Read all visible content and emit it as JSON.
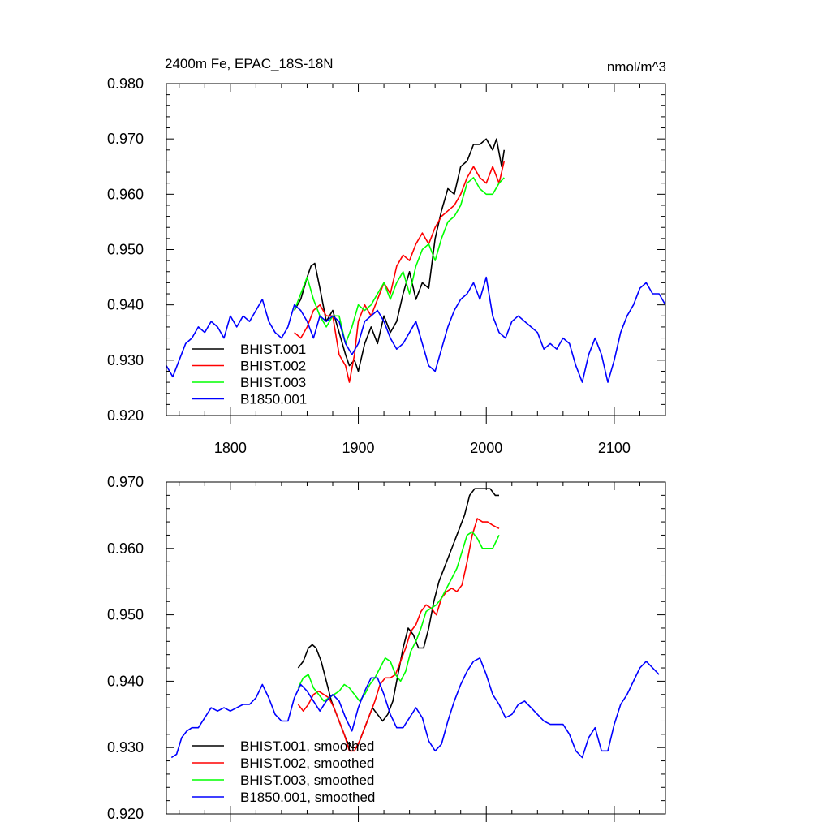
{
  "chart_data": [
    {
      "type": "line",
      "title": "2400m Fe, EPAC_18S-18N",
      "units": "nmol/m^3",
      "xlim": [
        1750,
        2140
      ],
      "ylim": [
        0.92,
        0.98
      ],
      "xticks": [
        1800,
        1900,
        2000,
        2100
      ],
      "xtick_labels": [
        "1800",
        "1900",
        "2000",
        "2100"
      ],
      "yticks": [
        0.92,
        0.93,
        0.94,
        0.95,
        0.96,
        0.97,
        0.98
      ],
      "ytick_labels": [
        "0.920",
        "0.930",
        "0.940",
        "0.950",
        "0.960",
        "0.970",
        "0.980"
      ],
      "grid": false,
      "legend_position": "bottom-left",
      "series": [
        {
          "name": "BHIST.001",
          "color": "#000000",
          "x": [
            1850,
            1855,
            1860,
            1863,
            1866,
            1870,
            1875,
            1880,
            1885,
            1890,
            1893,
            1897,
            1900,
            1905,
            1910,
            1915,
            1920,
            1925,
            1930,
            1935,
            1940,
            1945,
            1950,
            1955,
            1960,
            1965,
            1970,
            1975,
            1980,
            1985,
            1990,
            1995,
            2000,
            2005,
            2008,
            2012,
            2014
          ],
          "y": [
            0.939,
            0.941,
            0.945,
            0.947,
            0.9475,
            0.943,
            0.937,
            0.939,
            0.935,
            0.931,
            0.929,
            0.93,
            0.928,
            0.933,
            0.936,
            0.933,
            0.938,
            0.935,
            0.937,
            0.942,
            0.946,
            0.941,
            0.944,
            0.943,
            0.952,
            0.957,
            0.961,
            0.96,
            0.965,
            0.966,
            0.969,
            0.969,
            0.97,
            0.968,
            0.97,
            0.965,
            0.968
          ]
        },
        {
          "name": "BHIST.002",
          "color": "#ff0000",
          "x": [
            1850,
            1855,
            1860,
            1865,
            1870,
            1875,
            1880,
            1885,
            1890,
            1893,
            1897,
            1900,
            1905,
            1910,
            1915,
            1920,
            1925,
            1930,
            1935,
            1940,
            1945,
            1950,
            1955,
            1960,
            1965,
            1970,
            1975,
            1980,
            1985,
            1990,
            1995,
            2000,
            2005,
            2010,
            2014
          ],
          "y": [
            0.935,
            0.934,
            0.936,
            0.939,
            0.94,
            0.938,
            0.938,
            0.931,
            0.929,
            0.926,
            0.931,
            0.937,
            0.94,
            0.938,
            0.941,
            0.944,
            0.942,
            0.947,
            0.949,
            0.948,
            0.951,
            0.953,
            0.951,
            0.954,
            0.956,
            0.957,
            0.958,
            0.96,
            0.963,
            0.965,
            0.963,
            0.962,
            0.965,
            0.962,
            0.966
          ]
        },
        {
          "name": "BHIST.003",
          "color": "#00ff00",
          "x": [
            1850,
            1855,
            1860,
            1865,
            1870,
            1875,
            1880,
            1885,
            1890,
            1895,
            1900,
            1905,
            1910,
            1915,
            1920,
            1925,
            1930,
            1935,
            1940,
            1945,
            1950,
            1955,
            1960,
            1965,
            1970,
            1975,
            1980,
            1985,
            1990,
            1995,
            2000,
            2005,
            2010,
            2014
          ],
          "y": [
            0.939,
            0.942,
            0.945,
            0.941,
            0.938,
            0.936,
            0.938,
            0.938,
            0.933,
            0.936,
            0.94,
            0.939,
            0.94,
            0.942,
            0.944,
            0.941,
            0.944,
            0.946,
            0.942,
            0.947,
            0.95,
            0.951,
            0.948,
            0.952,
            0.955,
            0.956,
            0.958,
            0.962,
            0.963,
            0.961,
            0.96,
            0.96,
            0.962,
            0.963
          ]
        },
        {
          "name": "B1850.001",
          "color": "#0000ff",
          "x": [
            1750,
            1755,
            1760,
            1765,
            1770,
            1775,
            1780,
            1785,
            1790,
            1795,
            1800,
            1805,
            1810,
            1815,
            1820,
            1825,
            1830,
            1835,
            1840,
            1845,
            1850,
            1855,
            1860,
            1865,
            1870,
            1875,
            1880,
            1885,
            1890,
            1895,
            1900,
            1905,
            1910,
            1915,
            1920,
            1925,
            1930,
            1935,
            1940,
            1945,
            1950,
            1955,
            1960,
            1965,
            1970,
            1975,
            1980,
            1985,
            1990,
            1995,
            2000,
            2005,
            2010,
            2015,
            2020,
            2025,
            2030,
            2035,
            2040,
            2045,
            2050,
            2055,
            2060,
            2065,
            2070,
            2075,
            2080,
            2085,
            2090,
            2095,
            2100,
            2105,
            2110,
            2115,
            2120,
            2125,
            2130,
            2135,
            2140
          ],
          "y": [
            0.929,
            0.927,
            0.93,
            0.933,
            0.934,
            0.936,
            0.935,
            0.937,
            0.936,
            0.934,
            0.938,
            0.936,
            0.938,
            0.937,
            0.939,
            0.941,
            0.937,
            0.935,
            0.934,
            0.936,
            0.94,
            0.939,
            0.937,
            0.934,
            0.938,
            0.937,
            0.938,
            0.937,
            0.933,
            0.931,
            0.933,
            0.937,
            0.938,
            0.939,
            0.937,
            0.934,
            0.932,
            0.933,
            0.935,
            0.937,
            0.933,
            0.929,
            0.928,
            0.932,
            0.936,
            0.939,
            0.941,
            0.942,
            0.944,
            0.941,
            0.945,
            0.938,
            0.935,
            0.934,
            0.937,
            0.938,
            0.937,
            0.936,
            0.935,
            0.932,
            0.933,
            0.932,
            0.934,
            0.933,
            0.929,
            0.926,
            0.931,
            0.934,
            0.931,
            0.926,
            0.93,
            0.935,
            0.938,
            0.94,
            0.943,
            0.944,
            0.942,
            0.942,
            0.94
          ]
        }
      ]
    },
    {
      "type": "line",
      "xlim": [
        1750,
        2140
      ],
      "ylim": [
        0.92,
        0.97
      ],
      "xticks": [
        1800,
        1900,
        2000,
        2100
      ],
      "xtick_labels": [],
      "yticks": [
        0.92,
        0.93,
        0.94,
        0.95,
        0.96,
        0.97
      ],
      "ytick_labels": [
        "0.920",
        "0.930",
        "0.940",
        "0.950",
        "0.960",
        "0.970"
      ],
      "grid": false,
      "legend_position": "bottom-left",
      "series": [
        {
          "name": "BHIST.001, smoothed",
          "color": "#000000",
          "x": [
            1853,
            1857,
            1861,
            1864,
            1867,
            1871,
            1875,
            1879,
            1883,
            1887,
            1891,
            1895,
            1899,
            1903,
            1907,
            1911,
            1915,
            1919,
            1923,
            1927,
            1931,
            1935,
            1939,
            1943,
            1947,
            1951,
            1955,
            1959,
            1963,
            1967,
            1971,
            1975,
            1979,
            1983,
            1987,
            1991,
            1995,
            1999,
            2003,
            2007,
            2010
          ],
          "y": [
            0.942,
            0.943,
            0.945,
            0.9455,
            0.945,
            0.943,
            0.94,
            0.937,
            0.935,
            0.933,
            0.931,
            0.93,
            0.93,
            0.932,
            0.934,
            0.936,
            0.935,
            0.934,
            0.935,
            0.937,
            0.941,
            0.945,
            0.948,
            0.947,
            0.945,
            0.945,
            0.948,
            0.952,
            0.955,
            0.957,
            0.959,
            0.961,
            0.963,
            0.965,
            0.968,
            0.969,
            0.969,
            0.969,
            0.969,
            0.968,
            0.968
          ]
        },
        {
          "name": "BHIST.002, smoothed",
          "color": "#ff0000",
          "x": [
            1853,
            1857,
            1861,
            1865,
            1869,
            1873,
            1877,
            1881,
            1885,
            1889,
            1893,
            1897,
            1901,
            1905,
            1909,
            1913,
            1917,
            1921,
            1925,
            1929,
            1933,
            1937,
            1941,
            1945,
            1949,
            1953,
            1957,
            1961,
            1965,
            1969,
            1973,
            1977,
            1981,
            1985,
            1989,
            1993,
            1997,
            2001,
            2005,
            2010
          ],
          "y": [
            0.9365,
            0.9355,
            0.9365,
            0.938,
            0.9385,
            0.938,
            0.9375,
            0.936,
            0.934,
            0.932,
            0.9295,
            0.9295,
            0.931,
            0.933,
            0.935,
            0.937,
            0.9395,
            0.9405,
            0.9405,
            0.941,
            0.943,
            0.945,
            0.9475,
            0.9485,
            0.9505,
            0.9515,
            0.951,
            0.95,
            0.9525,
            0.9535,
            0.954,
            0.9535,
            0.9545,
            0.958,
            0.962,
            0.9645,
            0.964,
            0.964,
            0.9635,
            0.963
          ]
        },
        {
          "name": "BHIST.003, smoothed",
          "color": "#00ff00",
          "x": [
            1853,
            1857,
            1861,
            1865,
            1869,
            1873,
            1877,
            1881,
            1885,
            1889,
            1893,
            1897,
            1901,
            1905,
            1909,
            1913,
            1917,
            1921,
            1925,
            1929,
            1933,
            1937,
            1941,
            1945,
            1949,
            1953,
            1957,
            1961,
            1965,
            1969,
            1973,
            1977,
            1981,
            1985,
            1989,
            1993,
            1997,
            2001,
            2005,
            2010
          ],
          "y": [
            0.939,
            0.9405,
            0.941,
            0.939,
            0.938,
            0.937,
            0.9375,
            0.938,
            0.9385,
            0.9395,
            0.939,
            0.938,
            0.937,
            0.938,
            0.9395,
            0.9405,
            0.942,
            0.9435,
            0.943,
            0.941,
            0.94,
            0.9415,
            0.9445,
            0.946,
            0.948,
            0.9505,
            0.951,
            0.9515,
            0.9525,
            0.954,
            0.9555,
            0.957,
            0.9595,
            0.962,
            0.9625,
            0.9615,
            0.96,
            0.96,
            0.96,
            0.962
          ]
        },
        {
          "name": "B1850.001, smoothed",
          "color": "#0000ff",
          "x": [
            1754,
            1758,
            1762,
            1766,
            1770,
            1775,
            1780,
            1785,
            1790,
            1795,
            1800,
            1805,
            1810,
            1815,
            1820,
            1825,
            1830,
            1835,
            1840,
            1845,
            1850,
            1855,
            1860,
            1865,
            1870,
            1875,
            1880,
            1885,
            1890,
            1895,
            1900,
            1905,
            1910,
            1915,
            1920,
            1925,
            1930,
            1935,
            1940,
            1945,
            1950,
            1955,
            1960,
            1965,
            1970,
            1975,
            1980,
            1985,
            1990,
            1995,
            2000,
            2005,
            2010,
            2015,
            2020,
            2025,
            2030,
            2035,
            2040,
            2045,
            2050,
            2055,
            2060,
            2065,
            2070,
            2075,
            2080,
            2085,
            2090,
            2095,
            2100,
            2105,
            2110,
            2115,
            2120,
            2125,
            2130,
            2135
          ],
          "y": [
            0.9285,
            0.929,
            0.9315,
            0.9325,
            0.933,
            0.933,
            0.9345,
            0.936,
            0.9355,
            0.936,
            0.9355,
            0.936,
            0.9365,
            0.9365,
            0.9375,
            0.9395,
            0.9375,
            0.935,
            0.934,
            0.934,
            0.9375,
            0.9395,
            0.9385,
            0.937,
            0.9355,
            0.937,
            0.938,
            0.937,
            0.9345,
            0.9325,
            0.936,
            0.9385,
            0.9405,
            0.9405,
            0.938,
            0.935,
            0.933,
            0.933,
            0.9345,
            0.936,
            0.9345,
            0.931,
            0.9295,
            0.9305,
            0.934,
            0.937,
            0.9395,
            0.9415,
            0.943,
            0.9435,
            0.941,
            0.938,
            0.9365,
            0.9345,
            0.935,
            0.9365,
            0.937,
            0.936,
            0.935,
            0.934,
            0.9335,
            0.9335,
            0.9335,
            0.932,
            0.9295,
            0.9285,
            0.9315,
            0.933,
            0.9295,
            0.9295,
            0.9335,
            0.9365,
            0.938,
            0.94,
            0.942,
            0.943,
            0.942,
            0.941
          ]
        }
      ]
    }
  ]
}
